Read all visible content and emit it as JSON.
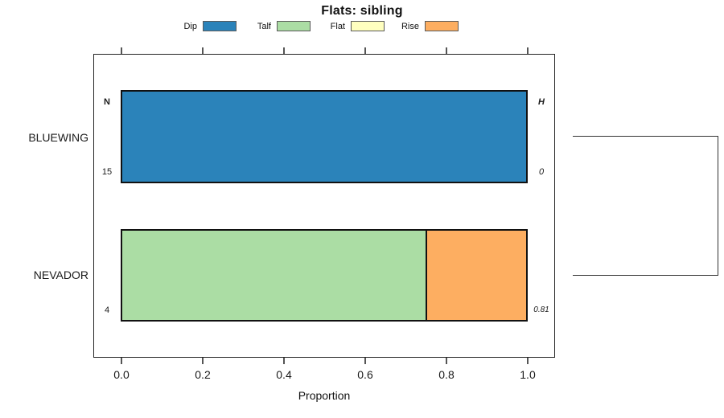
{
  "chart_data": {
    "type": "bar",
    "orientation": "horizontal-stacked",
    "title": "Flats: sibling",
    "xlabel": "Proportion",
    "xlim": [
      0,
      1
    ],
    "x_ticks": [
      "0.0",
      "0.2",
      "0.4",
      "0.6",
      "0.8",
      "1.0"
    ],
    "grid": false,
    "legend_position": "top",
    "legend": [
      {
        "label": "Dip",
        "color": "#2B83BA"
      },
      {
        "label": "Talf",
        "color": "#ABDDA4"
      },
      {
        "label": "Flat",
        "color": "#FFFFBF"
      },
      {
        "label": "Rise",
        "color": "#FDAE61"
      }
    ],
    "annotation_headers": {
      "left": "N",
      "right": "H"
    },
    "rows": [
      {
        "category": "BLUEWING",
        "n": "15",
        "h": "0",
        "segments": [
          {
            "name": "Dip",
            "value": 1.0
          }
        ]
      },
      {
        "category": "NEVADOR",
        "n": "4",
        "h": "0.81",
        "segments": [
          {
            "name": "Talf",
            "value": 0.75
          },
          {
            "name": "Rise",
            "value": 0.25
          }
        ]
      }
    ],
    "right_bracket": {
      "connects": [
        "BLUEWING",
        "NEVADOR"
      ]
    }
  }
}
